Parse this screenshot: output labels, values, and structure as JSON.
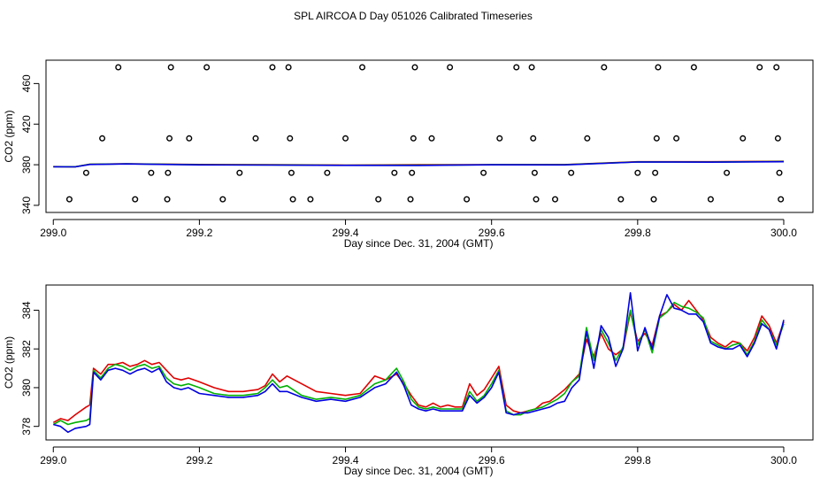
{
  "title": "SPL AIRCOA D  Day 051026  Calibrated Timeseries",
  "colors": {
    "red": "#e00000",
    "green": "#00b000",
    "blue": "#0000e0"
  },
  "chart_data": [
    {
      "type": "line",
      "name": "top-panel",
      "xlabel": "Day since Dec. 31, 2004 (GMT)",
      "ylabel": "CO2 (ppm)",
      "xlim": [
        298.99,
        300.04
      ],
      "ylim": [
        333,
        483
      ],
      "xticks": [
        299.0,
        299.2,
        299.4,
        299.6,
        299.8,
        300.0
      ],
      "xtick_labels": [
        "299.0",
        "299.2",
        "299.4",
        "299.6",
        "299.8",
        "300.0"
      ],
      "yticks": [
        340,
        380,
        420,
        460
      ],
      "ytick_labels": [
        "340",
        "380",
        "420",
        "460"
      ],
      "series": [
        {
          "name": "red",
          "x": [
            299.0,
            299.03,
            299.05,
            299.1,
            299.2,
            299.3,
            299.4,
            299.5,
            299.6,
            299.7,
            299.8,
            299.9,
            300.0
          ],
          "values": [
            378.2,
            378.0,
            380.5,
            381.0,
            380.3,
            380.0,
            379.7,
            380.0,
            380.1,
            380.2,
            383.0,
            383.0,
            383.4
          ]
        },
        {
          "name": "green",
          "x": [
            299.0,
            299.03,
            299.05,
            299.1,
            299.2,
            299.3,
            299.4,
            299.5,
            299.6,
            299.7,
            299.8,
            299.9,
            300.0
          ],
          "values": [
            378.1,
            378.0,
            380.4,
            380.9,
            380.0,
            379.8,
            379.5,
            379.6,
            380.0,
            380.0,
            382.8,
            382.6,
            383.2
          ]
        },
        {
          "name": "blue",
          "x": [
            299.0,
            299.03,
            299.05,
            299.1,
            299.2,
            299.3,
            299.4,
            299.5,
            299.6,
            299.7,
            299.8,
            299.9,
            300.0
          ],
          "values": [
            378.0,
            377.9,
            380.3,
            380.8,
            379.8,
            379.7,
            379.4,
            379.3,
            379.9,
            379.8,
            382.7,
            382.5,
            383.0
          ]
        }
      ],
      "markers": [
        {
          "x": 299.022,
          "y": 346
        },
        {
          "x": 299.045,
          "y": 372
        },
        {
          "x": 299.067,
          "y": 406
        },
        {
          "x": 299.089,
          "y": 476
        },
        {
          "x": 299.112,
          "y": 346
        },
        {
          "x": 299.134,
          "y": 372
        },
        {
          "x": 299.156,
          "y": 346
        },
        {
          "x": 299.157,
          "y": 372
        },
        {
          "x": 299.159,
          "y": 406
        },
        {
          "x": 299.161,
          "y": 476
        },
        {
          "x": 299.186,
          "y": 406
        },
        {
          "x": 299.21,
          "y": 476
        },
        {
          "x": 299.232,
          "y": 346
        },
        {
          "x": 299.255,
          "y": 372
        },
        {
          "x": 299.277,
          "y": 406
        },
        {
          "x": 299.3,
          "y": 476
        },
        {
          "x": 299.322,
          "y": 476
        },
        {
          "x": 299.324,
          "y": 406
        },
        {
          "x": 299.326,
          "y": 372
        },
        {
          "x": 299.328,
          "y": 346
        },
        {
          "x": 299.352,
          "y": 346
        },
        {
          "x": 299.375,
          "y": 372
        },
        {
          "x": 299.4,
          "y": 406
        },
        {
          "x": 299.423,
          "y": 476
        },
        {
          "x": 299.445,
          "y": 346
        },
        {
          "x": 299.467,
          "y": 372
        },
        {
          "x": 299.489,
          "y": 346
        },
        {
          "x": 299.491,
          "y": 372
        },
        {
          "x": 299.493,
          "y": 406
        },
        {
          "x": 299.495,
          "y": 476
        },
        {
          "x": 299.518,
          "y": 406
        },
        {
          "x": 299.543,
          "y": 476
        },
        {
          "x": 299.566,
          "y": 346
        },
        {
          "x": 299.589,
          "y": 372
        },
        {
          "x": 299.611,
          "y": 406
        },
        {
          "x": 299.634,
          "y": 476
        },
        {
          "x": 299.655,
          "y": 476
        },
        {
          "x": 299.657,
          "y": 406
        },
        {
          "x": 299.659,
          "y": 372
        },
        {
          "x": 299.661,
          "y": 346
        },
        {
          "x": 299.687,
          "y": 346
        },
        {
          "x": 299.709,
          "y": 372
        },
        {
          "x": 299.731,
          "y": 406
        },
        {
          "x": 299.754,
          "y": 476
        },
        {
          "x": 299.777,
          "y": 346
        },
        {
          "x": 299.8,
          "y": 372
        },
        {
          "x": 299.822,
          "y": 346
        },
        {
          "x": 299.824,
          "y": 372
        },
        {
          "x": 299.826,
          "y": 406
        },
        {
          "x": 299.828,
          "y": 476
        },
        {
          "x": 299.853,
          "y": 406
        },
        {
          "x": 299.877,
          "y": 476
        },
        {
          "x": 299.9,
          "y": 346
        },
        {
          "x": 299.922,
          "y": 372
        },
        {
          "x": 299.944,
          "y": 406
        },
        {
          "x": 299.967,
          "y": 476
        },
        {
          "x": 299.99,
          "y": 476
        },
        {
          "x": 299.992,
          "y": 406
        },
        {
          "x": 299.994,
          "y": 372
        },
        {
          "x": 299.996,
          "y": 346
        }
      ]
    },
    {
      "type": "line",
      "name": "bottom-panel",
      "xlabel": "Day since Dec. 31, 2004 (GMT)",
      "ylabel": "CO2 (ppm)",
      "xlim": [
        298.99,
        300.04
      ],
      "ylim": [
        377.3,
        385.3
      ],
      "xticks": [
        299.0,
        299.2,
        299.4,
        299.6,
        299.8,
        300.0
      ],
      "xtick_labels": [
        "299.0",
        "299.2",
        "299.4",
        "299.6",
        "299.8",
        "300.0"
      ],
      "yticks": [
        378,
        380,
        382,
        384
      ],
      "ytick_labels": [
        "378",
        "380",
        "382",
        "384"
      ],
      "x": [
        299.0,
        299.01,
        299.02,
        299.03,
        299.045,
        299.05,
        299.055,
        299.065,
        299.075,
        299.085,
        299.095,
        299.105,
        299.115,
        299.125,
        299.135,
        299.145,
        299.155,
        299.165,
        299.175,
        299.185,
        299.2,
        299.22,
        299.24,
        299.26,
        299.28,
        299.29,
        299.3,
        299.31,
        299.32,
        299.34,
        299.36,
        299.38,
        299.4,
        299.42,
        299.44,
        299.455,
        299.47,
        299.48,
        299.49,
        299.5,
        299.51,
        299.52,
        299.53,
        299.54,
        299.55,
        299.56,
        299.57,
        299.58,
        299.59,
        299.6,
        299.61,
        299.62,
        299.63,
        299.64,
        299.65,
        299.66,
        299.67,
        299.68,
        299.69,
        299.7,
        299.71,
        299.72,
        299.73,
        299.74,
        299.75,
        299.76,
        299.77,
        299.78,
        299.79,
        299.8,
        299.81,
        299.82,
        299.83,
        299.84,
        299.85,
        299.86,
        299.87,
        299.88,
        299.89,
        299.9,
        299.91,
        299.92,
        299.93,
        299.94,
        299.95,
        299.96,
        299.97,
        299.98,
        299.99,
        300.0
      ],
      "series": [
        {
          "name": "red",
          "values": [
            378.2,
            378.4,
            378.3,
            378.6,
            379.0,
            379.1,
            381.0,
            380.7,
            381.2,
            381.2,
            381.3,
            381.1,
            381.2,
            381.4,
            381.2,
            381.3,
            380.9,
            380.5,
            380.4,
            380.5,
            380.3,
            380.0,
            379.8,
            379.8,
            379.9,
            380.1,
            380.7,
            380.3,
            380.6,
            380.2,
            379.8,
            379.7,
            379.6,
            379.7,
            380.6,
            380.4,
            380.7,
            380.2,
            379.6,
            379.1,
            379.0,
            379.2,
            379.0,
            379.1,
            379.0,
            379.0,
            380.2,
            379.6,
            379.9,
            380.5,
            381.1,
            379.1,
            378.8,
            378.7,
            378.8,
            378.9,
            379.2,
            379.3,
            379.6,
            379.9,
            380.3,
            380.7,
            382.5,
            381.6,
            382.8,
            382.0,
            381.7,
            382.0,
            383.9,
            382.4,
            382.8,
            382.2,
            383.7,
            383.9,
            384.3,
            384.0,
            384.5,
            384.0,
            383.5,
            382.6,
            382.3,
            382.1,
            382.4,
            382.3,
            381.9,
            382.6,
            383.7,
            383.2,
            382.3,
            383.4
          ]
        },
        {
          "name": "green",
          "values": [
            378.1,
            378.3,
            378.1,
            378.2,
            378.3,
            378.4,
            380.9,
            380.5,
            381.0,
            381.2,
            381.1,
            380.9,
            381.1,
            381.2,
            381.0,
            381.1,
            380.5,
            380.2,
            380.1,
            380.2,
            380.0,
            379.7,
            379.6,
            379.6,
            379.7,
            380.0,
            380.4,
            380.0,
            380.1,
            379.6,
            379.4,
            379.5,
            379.4,
            379.6,
            380.2,
            380.4,
            381.0,
            380.3,
            379.4,
            379.0,
            378.9,
            379.0,
            378.9,
            378.9,
            378.9,
            378.9,
            379.8,
            379.3,
            379.6,
            380.2,
            380.9,
            378.8,
            378.6,
            378.6,
            378.8,
            378.9,
            379.0,
            379.2,
            379.4,
            379.7,
            380.3,
            380.6,
            383.1,
            381.4,
            383.0,
            382.3,
            381.4,
            382.1,
            384.0,
            382.2,
            383.0,
            381.8,
            383.6,
            383.9,
            384.4,
            384.2,
            384.1,
            383.9,
            383.6,
            382.4,
            382.2,
            382.0,
            382.2,
            382.3,
            381.7,
            382.4,
            383.5,
            383.0,
            382.2,
            383.3
          ]
        },
        {
          "name": "blue",
          "values": [
            378.1,
            378.0,
            377.7,
            377.9,
            378.0,
            378.1,
            380.8,
            380.4,
            380.9,
            381.0,
            380.9,
            380.7,
            380.9,
            381.0,
            380.8,
            381.0,
            380.3,
            380.0,
            379.9,
            380.0,
            379.7,
            379.6,
            379.5,
            379.5,
            379.6,
            379.8,
            380.2,
            379.8,
            379.8,
            379.5,
            379.3,
            379.4,
            379.3,
            379.5,
            380.0,
            380.2,
            380.8,
            380.1,
            379.1,
            378.9,
            378.8,
            378.9,
            378.8,
            378.8,
            378.8,
            378.8,
            379.6,
            379.2,
            379.5,
            380.0,
            380.8,
            378.7,
            378.6,
            378.7,
            378.7,
            378.8,
            378.9,
            379.0,
            379.2,
            379.3,
            380.0,
            380.4,
            382.9,
            381.0,
            383.2,
            382.6,
            381.1,
            382.0,
            384.9,
            381.9,
            383.1,
            382.0,
            383.7,
            384.8,
            384.1,
            384.0,
            383.8,
            383.8,
            383.4,
            382.3,
            382.1,
            382.0,
            382.0,
            382.2,
            381.6,
            382.3,
            383.3,
            383.0,
            382.0,
            383.5
          ]
        }
      ]
    }
  ]
}
